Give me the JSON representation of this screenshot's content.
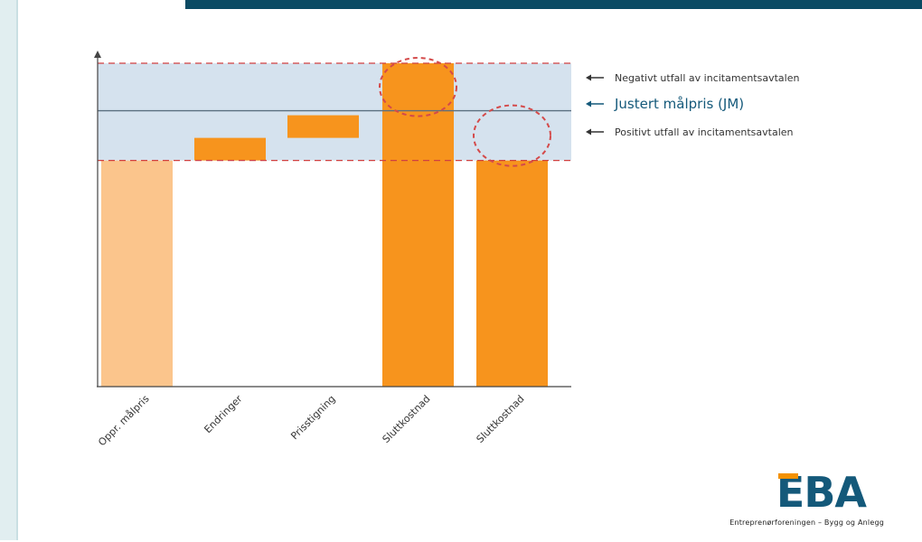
{
  "chart_data": {
    "type": "bar",
    "subtype": "waterfall",
    "categories": [
      "Oppr. målpris",
      "Endringer",
      "Prisstigning",
      "Sluttkostnad",
      "Sluttkostnad"
    ],
    "bars": [
      {
        "base": 0,
        "top": 100,
        "style": "light"
      },
      {
        "base": 100,
        "top": 110,
        "style": "dark"
      },
      {
        "base": 110,
        "top": 120,
        "style": "dark"
      },
      {
        "base": 0,
        "top": 143,
        "style": "dark"
      },
      {
        "base": 0,
        "top": 100,
        "style": "dark"
      }
    ],
    "band": {
      "low": 100,
      "high": 143
    },
    "reference_lines": [
      {
        "value": 143,
        "style": "dashed",
        "label": "Negativt utfall av incitamentsavtalen"
      },
      {
        "value": 122,
        "style": "solid",
        "label": "Justert målpris (JM)"
      },
      {
        "value": 100,
        "style": "dashed",
        "label": "Positivt utfall av incitamentsavtalen"
      }
    ],
    "highlights": [
      {
        "category_index": 3,
        "from": 122,
        "to": 143
      },
      {
        "category_index": 4,
        "from": 100,
        "to": 122
      }
    ],
    "ylim": [
      0,
      145
    ],
    "legend_placement": "right",
    "colors": {
      "light_bar": "#fbc58c",
      "dark_bar": "#f7941d",
      "band": "#d5e2ee",
      "line": "#5a6f80",
      "dashed": "#d04040",
      "highlight": "#d44a4a",
      "axis": "#444444",
      "legend_main": "#14597a"
    }
  },
  "logo": {
    "mark": "EBA",
    "tagline": "Entreprenørforeningen – Bygg og Anlegg"
  }
}
